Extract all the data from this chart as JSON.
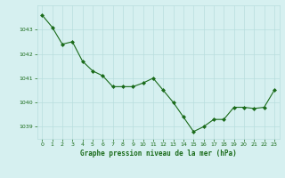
{
  "x": [
    0,
    1,
    2,
    3,
    4,
    5,
    6,
    7,
    8,
    9,
    10,
    11,
    12,
    13,
    14,
    15,
    16,
    17,
    18,
    19,
    20,
    21,
    22,
    23
  ],
  "y": [
    1043.6,
    1043.1,
    1042.4,
    1042.5,
    1041.7,
    1041.3,
    1041.1,
    1040.65,
    1040.65,
    1040.65,
    1040.8,
    1041.0,
    1040.5,
    1040.0,
    1039.4,
    1038.8,
    1039.0,
    1039.3,
    1039.3,
    1039.8,
    1039.8,
    1039.75,
    1039.8,
    1040.5
  ],
  "line_color": "#1a6b1a",
  "marker_color": "#1a6b1a",
  "background_color": "#d6f0f0",
  "grid_color": "#b8dede",
  "axis_label_color": "#1a6b1a",
  "tick_label_color": "#1a6b1a",
  "xlabel": "Graphe pression niveau de la mer (hPa)",
  "ylim": [
    1038.5,
    1044.0
  ],
  "yticks": [
    1039,
    1040,
    1041,
    1042,
    1043
  ],
  "xlim": [
    -0.5,
    23.5
  ],
  "xticks": [
    0,
    1,
    2,
    3,
    4,
    5,
    6,
    7,
    8,
    9,
    10,
    11,
    12,
    13,
    14,
    15,
    16,
    17,
    18,
    19,
    20,
    21,
    22,
    23
  ]
}
